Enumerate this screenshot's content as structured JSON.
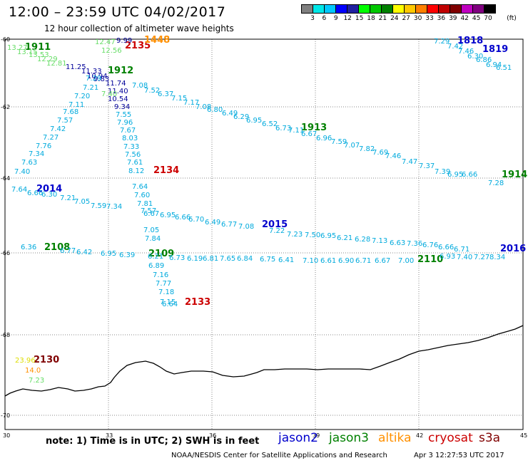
{
  "title": "12:00 – 23:59 UTC 04/02/2017",
  "subtitle": "12 hour collection of altimeter wave heights",
  "colorbar": {
    "unit": "(ft)",
    "labels": [
      "3",
      "6",
      "9",
      "12",
      "15",
      "18",
      "21",
      "24",
      "27",
      "30",
      "33",
      "36",
      "39",
      "42",
      "45",
      "70"
    ],
    "colors": [
      "#808080",
      "#00e8e8",
      "#00c8ff",
      "#0000ff",
      "#2020a0",
      "#00ff00",
      "#00c800",
      "#008000",
      "#ffff00",
      "#ffc800",
      "#ff8000",
      "#ff0000",
      "#c00000",
      "#800000",
      "#c000c0",
      "#800080",
      "#000000"
    ]
  },
  "axes": {
    "lon_labels": [
      "30",
      "33",
      "36",
      "39",
      "42",
      "45"
    ],
    "lat_labels": [
      "-60",
      "-62",
      "-64",
      "-66",
      "-68",
      "-70"
    ]
  },
  "note": "note:  1) Time is in UTC;  2) SWH is in feet",
  "legend": [
    {
      "name": "jason2",
      "color": "#0000cc"
    },
    {
      "name": "jason3",
      "color": "#008000"
    },
    {
      "name": "altika",
      "color": "#ff9000"
    },
    {
      "name": "cryosat",
      "color": "#cc0000"
    },
    {
      "name": "s3a",
      "color": "#800000"
    }
  ],
  "credit": "NOAA/NESDIS Center for Satellite Applications and Research",
  "timestamp": "Apr  3 12:27:53 UTC 2017",
  "time_labels": [
    {
      "t": "1911",
      "color": "#008000"
    },
    {
      "t": "1912",
      "color": "#008000"
    },
    {
      "t": "1913",
      "color": "#008000"
    },
    {
      "t": "1914",
      "color": "#008000"
    },
    {
      "t": "2108",
      "color": "#008000"
    },
    {
      "t": "2109",
      "color": "#008000"
    },
    {
      "t": "2110",
      "color": "#008000"
    },
    {
      "t": "1818",
      "color": "#0000cc"
    },
    {
      "t": "1819",
      "color": "#0000cc"
    },
    {
      "t": "2014",
      "color": "#0000cc"
    },
    {
      "t": "2015",
      "color": "#0000cc"
    },
    {
      "t": "2016",
      "color": "#0000cc"
    },
    {
      "t": "2133",
      "color": "#cc0000"
    },
    {
      "t": "2134",
      "color": "#cc0000"
    },
    {
      "t": "2135",
      "color": "#cc0000"
    },
    {
      "t": "1448",
      "color": "#ff9000"
    },
    {
      "t": "2130",
      "color": "#800000"
    }
  ],
  "swh_labels": [
    {
      "t": "13.27",
      "color": "#66dd66"
    },
    {
      "t": "13.15",
      "color": "#66dd66"
    },
    {
      "t": "13.53",
      "color": "#66dd66"
    },
    {
      "t": "12.29",
      "color": "#66dd66"
    },
    {
      "t": "12.81",
      "color": "#66dd66"
    },
    {
      "t": "12.47",
      "color": "#66dd66"
    },
    {
      "t": "12.56",
      "color": "#66dd66"
    },
    {
      "t": "11.25",
      "color": "#000099"
    },
    {
      "t": "11.33",
      "color": "#000099"
    },
    {
      "t": "10.94",
      "color": "#000099"
    },
    {
      "t": "9.83",
      "color": "#000099"
    },
    {
      "t": "11.74",
      "color": "#000099"
    },
    {
      "t": "11.40",
      "color": "#000099"
    },
    {
      "t": "10.54",
      "color": "#000099"
    },
    {
      "t": "9.34",
      "color": "#000099"
    },
    {
      "t": "9.99",
      "color": "#000099"
    },
    {
      "t": "7.29",
      "color": "#00aadd"
    },
    {
      "t": "7.21",
      "color": "#00aadd"
    },
    {
      "t": "7.20",
      "color": "#00aadd"
    },
    {
      "t": "7.11",
      "color": "#00aadd"
    },
    {
      "t": "7.68",
      "color": "#00aadd"
    },
    {
      "t": "7.57",
      "color": "#00aadd"
    },
    {
      "t": "7.42",
      "color": "#00aadd"
    },
    {
      "t": "7.27",
      "color": "#00aadd"
    },
    {
      "t": "7.76",
      "color": "#00aadd"
    },
    {
      "t": "7.34",
      "color": "#00aadd"
    },
    {
      "t": "7.63",
      "color": "#00aadd"
    },
    {
      "t": "7.40",
      "color": "#00aadd"
    },
    {
      "t": "7.55",
      "color": "#00aadd"
    },
    {
      "t": "7.96",
      "color": "#00aadd"
    },
    {
      "t": "7.67",
      "color": "#00aadd"
    },
    {
      "t": "8.03",
      "color": "#00aadd"
    },
    {
      "t": "7.33",
      "color": "#00aadd"
    },
    {
      "t": "7.56",
      "color": "#00aadd"
    },
    {
      "t": "7.61",
      "color": "#00aadd"
    },
    {
      "t": "8.12",
      "color": "#00aadd"
    },
    {
      "t": "7.64",
      "color": "#00aadd"
    },
    {
      "t": "7.60",
      "color": "#00aadd"
    },
    {
      "t": "7.81",
      "color": "#00aadd"
    },
    {
      "t": "7.57",
      "color": "#00aadd"
    },
    {
      "t": "7.05",
      "color": "#00aadd"
    },
    {
      "t": "7.84",
      "color": "#00aadd"
    },
    {
      "t": "6.89",
      "color": "#00aadd"
    },
    {
      "t": "7.16",
      "color": "#00aadd"
    },
    {
      "t": "7.77",
      "color": "#00aadd"
    },
    {
      "t": "7.18",
      "color": "#00aadd"
    },
    {
      "t": "7.15",
      "color": "#00aadd"
    },
    {
      "t": "6.64",
      "color": "#00aadd"
    },
    {
      "t": "7.08",
      "color": "#00aadd"
    },
    {
      "t": "7.52",
      "color": "#00aadd"
    },
    {
      "t": "6.37",
      "color": "#00aadd"
    },
    {
      "t": "7.15",
      "color": "#00aadd"
    },
    {
      "t": "7.17",
      "color": "#00aadd"
    },
    {
      "t": "7.08",
      "color": "#00aadd"
    },
    {
      "t": "6.80",
      "color": "#00aadd"
    },
    {
      "t": "6.49",
      "color": "#00aadd"
    },
    {
      "t": "6.29",
      "color": "#00aadd"
    },
    {
      "t": "6.95",
      "color": "#00aadd"
    },
    {
      "t": "6.52",
      "color": "#00aadd"
    },
    {
      "t": "6.73",
      "color": "#00aadd"
    },
    {
      "t": "7.11",
      "color": "#00aadd"
    },
    {
      "t": "6.67",
      "color": "#00aadd"
    },
    {
      "t": "6.96",
      "color": "#00aadd"
    },
    {
      "t": "7.59",
      "color": "#00aadd"
    },
    {
      "t": "7.07",
      "color": "#00aadd"
    },
    {
      "t": "7.82",
      "color": "#00aadd"
    },
    {
      "t": "7.69",
      "color": "#00aadd"
    },
    {
      "t": "7.46",
      "color": "#00aadd"
    },
    {
      "t": "7.47",
      "color": "#00aadd"
    },
    {
      "t": "7.37",
      "color": "#00aadd"
    },
    {
      "t": "7.39",
      "color": "#00aadd"
    },
    {
      "t": "6.95",
      "color": "#00aadd"
    },
    {
      "t": "6.66",
      "color": "#00aadd"
    },
    {
      "t": "7.28",
      "color": "#00aadd"
    },
    {
      "t": "7.64",
      "color": "#00aadd"
    },
    {
      "t": "6.66",
      "color": "#00aadd"
    },
    {
      "t": "6.30",
      "color": "#00aadd"
    },
    {
      "t": "7.21",
      "color": "#00aadd"
    },
    {
      "t": "7.05",
      "color": "#00aadd"
    },
    {
      "t": "7.59",
      "color": "#00aadd"
    },
    {
      "t": "7.34",
      "color": "#00aadd"
    },
    {
      "t": "6.67",
      "color": "#00aadd"
    },
    {
      "t": "6.95",
      "color": "#00aadd"
    },
    {
      "t": "6.66",
      "color": "#00aadd"
    },
    {
      "t": "6.70",
      "color": "#00aadd"
    },
    {
      "t": "6.49",
      "color": "#00aadd"
    },
    {
      "t": "6.77",
      "color": "#00aadd"
    },
    {
      "t": "7.08",
      "color": "#00aadd"
    },
    {
      "t": "7.22",
      "color": "#00aadd"
    },
    {
      "t": "7.23",
      "color": "#00aadd"
    },
    {
      "t": "7.50",
      "color": "#00aadd"
    },
    {
      "t": "6.95",
      "color": "#00aadd"
    },
    {
      "t": "6.21",
      "color": "#00aadd"
    },
    {
      "t": "6.28",
      "color": "#00aadd"
    },
    {
      "t": "7.13",
      "color": "#00aadd"
    },
    {
      "t": "6.63",
      "color": "#00aadd"
    },
    {
      "t": "7.36",
      "color": "#00aadd"
    },
    {
      "t": "6.76",
      "color": "#00aadd"
    },
    {
      "t": "6.66",
      "color": "#00aadd"
    },
    {
      "t": "6.71",
      "color": "#00aadd"
    },
    {
      "t": "6.36",
      "color": "#00aadd"
    },
    {
      "t": "6.77",
      "color": "#00aadd"
    },
    {
      "t": "6.42",
      "color": "#00aadd"
    },
    {
      "t": "6.95",
      "color": "#00aadd"
    },
    {
      "t": "6.39",
      "color": "#00aadd"
    },
    {
      "t": "6.21",
      "color": "#00aadd"
    },
    {
      "t": "6.73",
      "color": "#00aadd"
    },
    {
      "t": "6.19",
      "color": "#00aadd"
    },
    {
      "t": "6.81",
      "color": "#00aadd"
    },
    {
      "t": "7.65",
      "color": "#00aadd"
    },
    {
      "t": "6.84",
      "color": "#00aadd"
    },
    {
      "t": "6.75",
      "color": "#00aadd"
    },
    {
      "t": "6.41",
      "color": "#00aadd"
    },
    {
      "t": "7.10",
      "color": "#00aadd"
    },
    {
      "t": "6.61",
      "color": "#00aadd"
    },
    {
      "t": "6.90",
      "color": "#00aadd"
    },
    {
      "t": "6.71",
      "color": "#00aadd"
    },
    {
      "t": "6.67",
      "color": "#00aadd"
    },
    {
      "t": "7.00",
      "color": "#00aadd"
    },
    {
      "t": "6.93",
      "color": "#00aadd"
    },
    {
      "t": "7.40",
      "color": "#00aadd"
    },
    {
      "t": "7.27",
      "color": "#00aadd"
    },
    {
      "t": "8.34",
      "color": "#00aadd"
    },
    {
      "t": "7.29",
      "color": "#00aadd"
    },
    {
      "t": "7.42",
      "color": "#00aadd"
    },
    {
      "t": "7.46",
      "color": "#00aadd"
    },
    {
      "t": "6.30",
      "color": "#00aadd"
    },
    {
      "t": "6.86",
      "color": "#00aadd"
    },
    {
      "t": "6.94",
      "color": "#00aadd"
    },
    {
      "t": "6.51",
      "color": "#00aadd"
    },
    {
      "t": "23.96",
      "color": "#dddd00"
    },
    {
      "t": "14.0",
      "color": "#ff9000"
    },
    {
      "t": "7.23",
      "color": "#66dd66"
    },
    {
      "t": "7.40",
      "color": "#66dd66"
    }
  ]
}
